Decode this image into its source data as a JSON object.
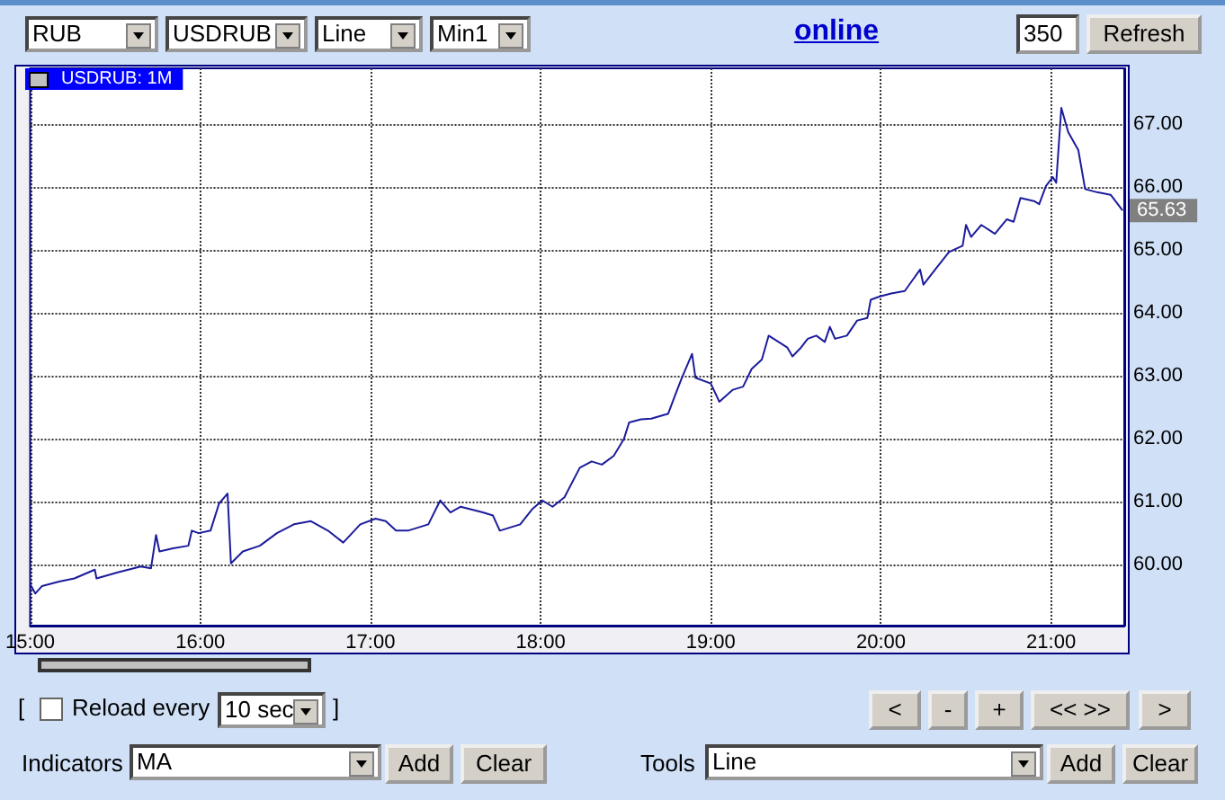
{
  "chart_data": {
    "type": "line",
    "title": "USDRUB: 1M",
    "color": "#1c1c9c",
    "grid": true,
    "line_style": "solid",
    "x": [
      15.0,
      15.03,
      15.07,
      15.17,
      15.26,
      15.38,
      15.39,
      15.52,
      15.65,
      15.71,
      15.74,
      15.76,
      15.84,
      15.93,
      15.95,
      15.99,
      16.06,
      16.11,
      16.16,
      16.18,
      16.25,
      16.35,
      16.45,
      16.55,
      16.65,
      16.75,
      16.84,
      16.94,
      17.03,
      17.09,
      17.15,
      17.22,
      17.34,
      17.41,
      17.47,
      17.53,
      17.66,
      17.72,
      17.76,
      17.82,
      17.88,
      17.95,
      18.01,
      18.07,
      18.14,
      18.23,
      18.3,
      18.36,
      18.43,
      18.49,
      18.52,
      18.59,
      18.65,
      18.75,
      18.79,
      18.83,
      18.89,
      18.91,
      19.0,
      19.05,
      19.13,
      19.19,
      19.24,
      19.3,
      19.34,
      19.45,
      19.48,
      19.53,
      19.57,
      19.62,
      19.67,
      19.7,
      19.73,
      19.8,
      19.86,
      19.92,
      19.94,
      19.99,
      20.06,
      20.14,
      20.23,
      20.25,
      20.33,
      20.4,
      20.48,
      20.5,
      20.53,
      20.59,
      20.67,
      20.74,
      20.78,
      20.82,
      20.9,
      20.93,
      20.97,
      21.01,
      21.03,
      21.06,
      21.1,
      21.16,
      21.2,
      21.27,
      21.35,
      21.42
    ],
    "values": [
      59.69,
      59.54,
      59.66,
      59.73,
      59.78,
      59.92,
      59.78,
      59.88,
      59.97,
      59.94,
      60.47,
      60.21,
      60.26,
      60.3,
      60.54,
      60.5,
      60.54,
      60.97,
      61.13,
      60.02,
      60.21,
      60.3,
      60.5,
      60.64,
      60.69,
      60.54,
      60.35,
      60.64,
      60.73,
      60.69,
      60.54,
      60.54,
      60.64,
      61.02,
      60.83,
      60.92,
      60.83,
      60.78,
      60.54,
      60.59,
      60.64,
      60.88,
      61.02,
      60.92,
      61.07,
      61.54,
      61.64,
      61.59,
      61.73,
      62.0,
      62.26,
      62.31,
      62.32,
      62.4,
      62.69,
      62.97,
      63.35,
      62.97,
      62.88,
      62.59,
      62.78,
      62.83,
      63.11,
      63.26,
      63.64,
      63.45,
      63.31,
      63.45,
      63.59,
      63.64,
      63.54,
      63.78,
      63.59,
      63.64,
      63.88,
      63.92,
      64.21,
      64.26,
      64.31,
      64.35,
      64.69,
      64.45,
      64.73,
      64.97,
      65.07,
      65.4,
      65.21,
      65.4,
      65.26,
      65.49,
      65.45,
      65.83,
      65.78,
      65.73,
      66.02,
      66.16,
      66.07,
      67.26,
      66.88,
      66.59,
      65.97,
      65.92,
      65.88,
      65.63
    ],
    "xlim": [
      15,
      21.43
    ],
    "xticks": [
      {
        "value": 15,
        "label": "15:00"
      },
      {
        "value": 16,
        "label": "16:00"
      },
      {
        "value": 17,
        "label": "17:00"
      },
      {
        "value": 18,
        "label": "18:00"
      },
      {
        "value": 19,
        "label": "19:00"
      },
      {
        "value": 20,
        "label": "20:00"
      },
      {
        "value": 21,
        "label": "21:00"
      }
    ],
    "ylim": [
      59.03,
      67.89
    ],
    "yticks": [
      {
        "value": 60,
        "label": "60.00"
      },
      {
        "value": 61,
        "label": "61.00"
      },
      {
        "value": 62,
        "label": "62.00"
      },
      {
        "value": 63,
        "label": "63.00"
      },
      {
        "value": 64,
        "label": "64.00"
      },
      {
        "value": 65,
        "label": "65.00"
      },
      {
        "value": 66,
        "label": "66.00"
      },
      {
        "value": 67,
        "label": "67.00"
      }
    ],
    "annotations": [
      {
        "text": "65.63",
        "x": 21.42,
        "y": 65.63
      },
      "RUB",
      "USDRUB",
      "Line",
      "Min1",
      "online",
      "350",
      "Refresh",
      "[",
      "Reload every",
      "10 sec",
      "]",
      "<",
      "-",
      "+",
      "<< >>",
      ">",
      "Indicators",
      "MA",
      "Add",
      "Clear",
      "Tools",
      "Line",
      "Add",
      "Clear"
    ]
  }
}
